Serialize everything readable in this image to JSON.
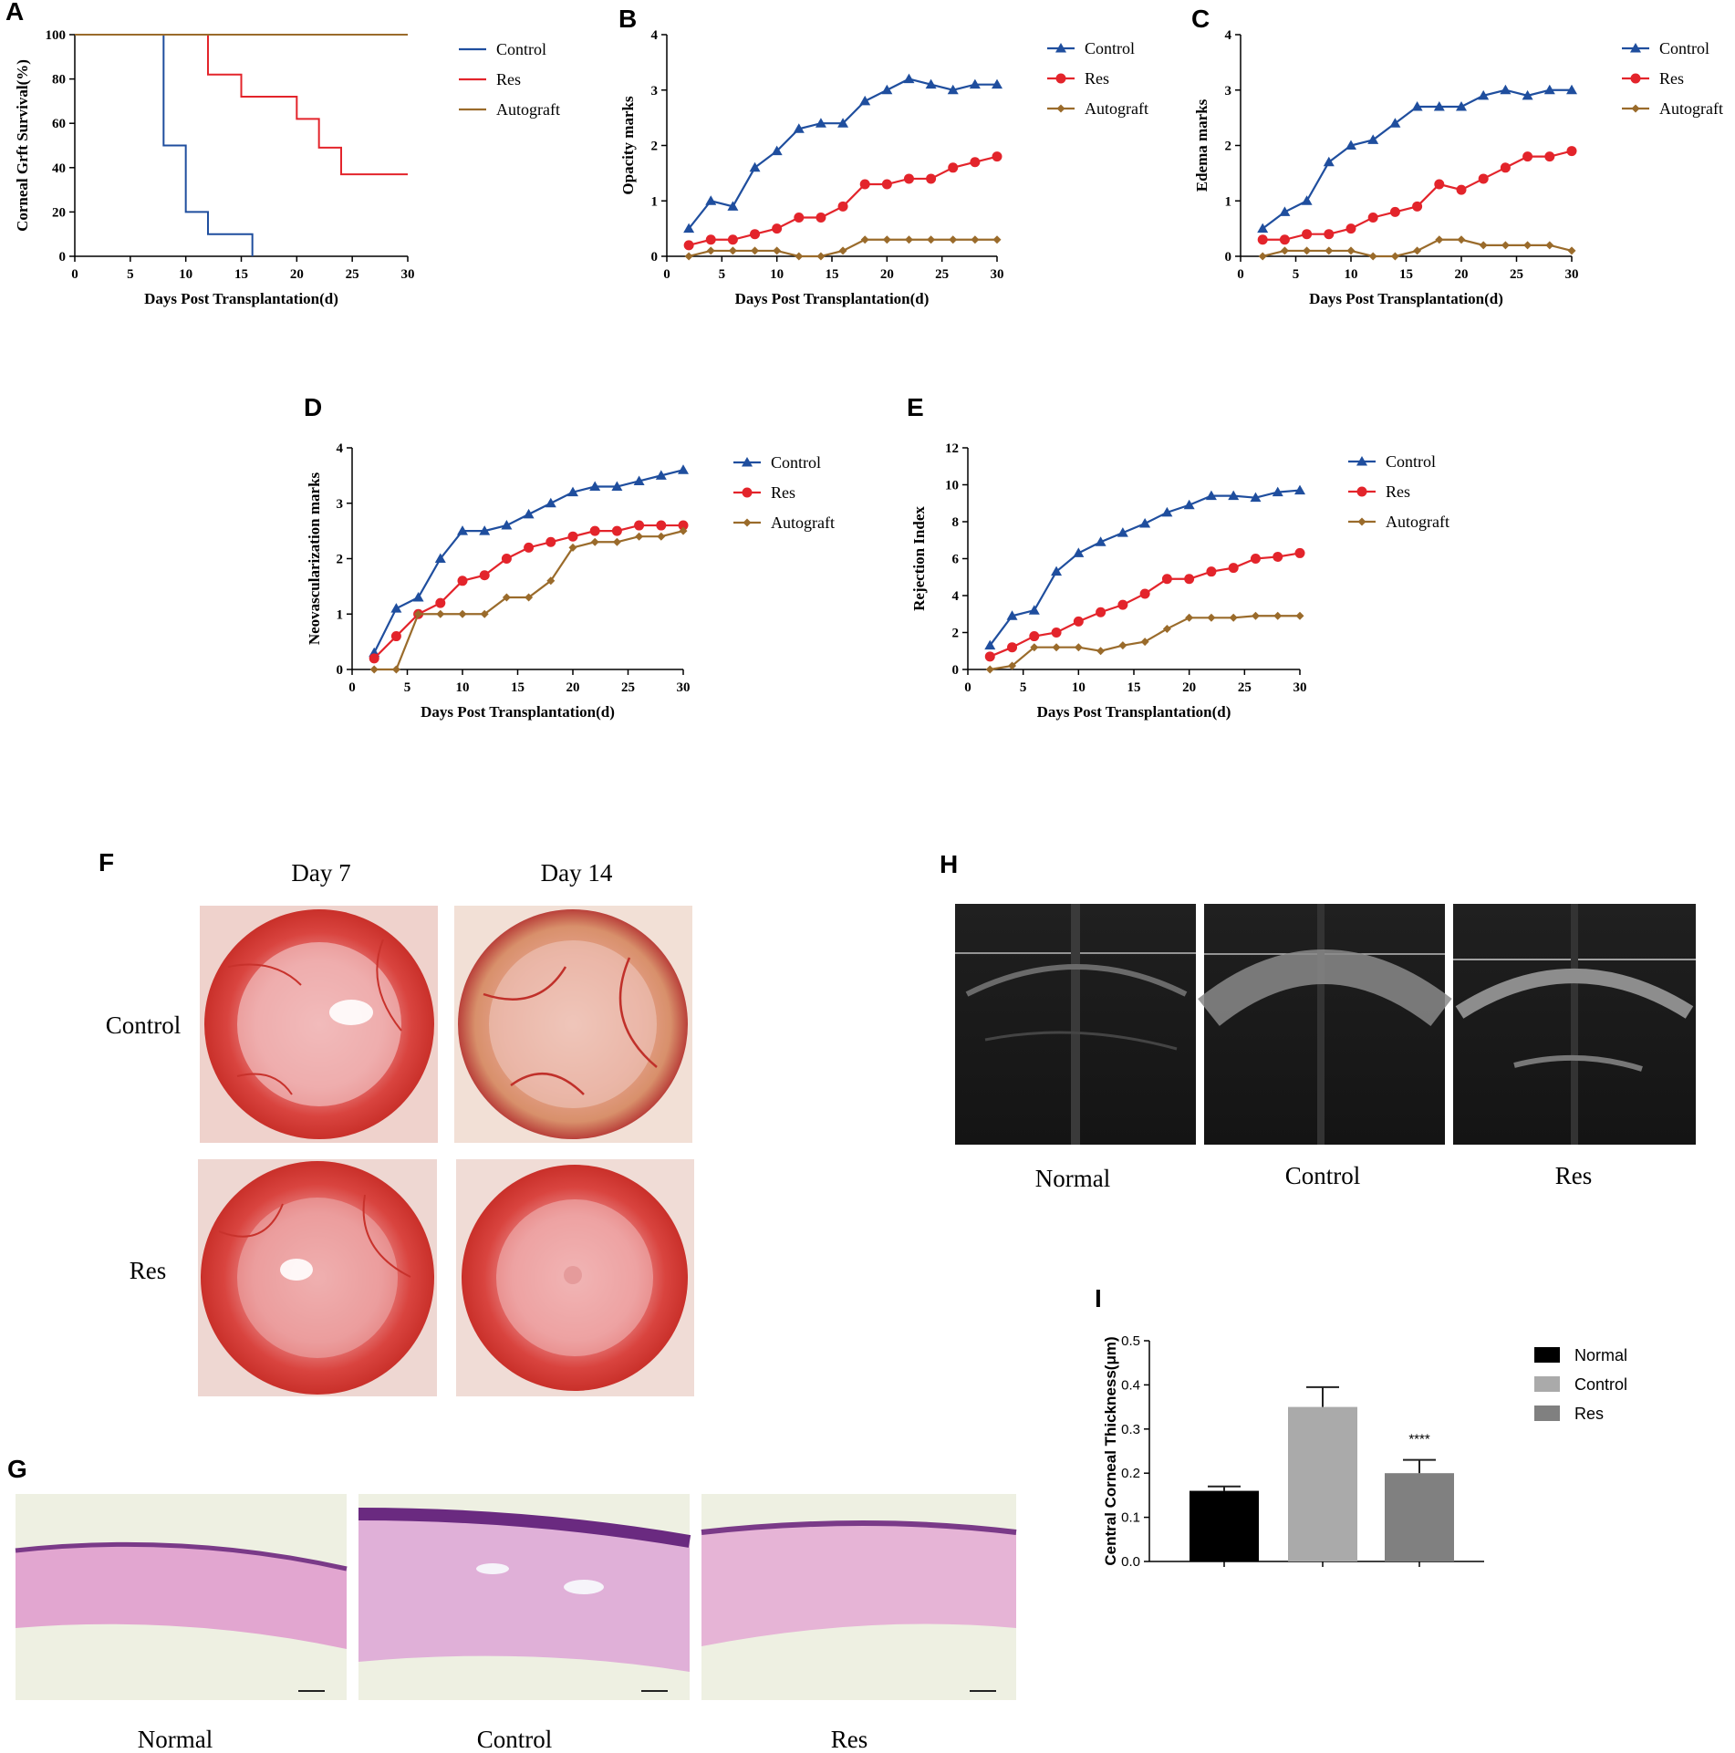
{
  "panel_letters": {
    "a": "A",
    "b": "B",
    "c": "C",
    "d": "D",
    "e": "E",
    "f": "F",
    "g": "G",
    "h": "H",
    "i": "I"
  },
  "colors": {
    "control": "#1f4e9e",
    "res": "#e3242b",
    "autograft": "#9a6b2b",
    "normal_bar": "#000000",
    "control_bar": "#aaaaaa",
    "res_bar": "#808080"
  },
  "chart_data": [
    {
      "id": "A",
      "type": "line",
      "title": "",
      "xlabel": "Days Post Transplantation(d)",
      "ylabel": "Corneal Grft Survival(%)",
      "xlim": [
        0,
        30
      ],
      "ylim": [
        0,
        100
      ],
      "xticks": [
        "0",
        "5",
        "10",
        "15",
        "20",
        "25",
        "30"
      ],
      "yticks": [
        "0",
        "20",
        "40",
        "60",
        "80",
        "100"
      ],
      "step": true,
      "legend": [
        "Control",
        "Res",
        "Autograft"
      ],
      "series": [
        {
          "name": "Control",
          "x": [
            0,
            8,
            8,
            10,
            10,
            12,
            12,
            16,
            16
          ],
          "y": [
            100,
            100,
            50,
            50,
            20,
            20,
            10,
            10,
            0
          ]
        },
        {
          "name": "Res",
          "x": [
            0,
            12,
            12,
            15,
            15,
            20,
            20,
            22,
            22,
            24,
            24,
            30
          ],
          "y": [
            100,
            100,
            82,
            82,
            72,
            72,
            62,
            62,
            49,
            49,
            37,
            37
          ]
        },
        {
          "name": "Autograft",
          "x": [
            0,
            30
          ],
          "y": [
            100,
            100
          ]
        }
      ]
    },
    {
      "id": "B",
      "type": "line",
      "xlabel": "Days Post Transplantation(d)",
      "ylabel": "Opacity marks",
      "xlim": [
        0,
        30
      ],
      "ylim": [
        0,
        4
      ],
      "xticks": [
        "0",
        "5",
        "10",
        "15",
        "20",
        "25",
        "30"
      ],
      "yticks": [
        "0",
        "1",
        "2",
        "3",
        "4"
      ],
      "legend": [
        "Control",
        "Res",
        "Autograft"
      ],
      "x": [
        2,
        4,
        6,
        8,
        10,
        12,
        14,
        16,
        18,
        20,
        22,
        24,
        26,
        28,
        30
      ],
      "series": [
        {
          "name": "Control",
          "values": [
            0.5,
            1.0,
            0.9,
            1.6,
            1.9,
            2.3,
            2.4,
            2.4,
            2.8,
            3.0,
            3.2,
            3.1,
            3.0,
            3.1,
            3.1
          ]
        },
        {
          "name": "Res",
          "values": [
            0.2,
            0.3,
            0.3,
            0.4,
            0.5,
            0.7,
            0.7,
            0.9,
            1.3,
            1.3,
            1.4,
            1.4,
            1.6,
            1.7,
            1.8
          ]
        },
        {
          "name": "Autograft",
          "values": [
            0.0,
            0.1,
            0.1,
            0.1,
            0.1,
            0.0,
            0.0,
            0.1,
            0.3,
            0.3,
            0.3,
            0.3,
            0.3,
            0.3,
            0.3
          ]
        }
      ]
    },
    {
      "id": "C",
      "type": "line",
      "xlabel": "Days Post Transplantation(d)",
      "ylabel": "Edema marks",
      "xlim": [
        0,
        30
      ],
      "ylim": [
        0,
        4
      ],
      "xticks": [
        "0",
        "5",
        "10",
        "15",
        "20",
        "25",
        "30"
      ],
      "yticks": [
        "0",
        "1",
        "2",
        "3",
        "4"
      ],
      "legend": [
        "Control",
        "Res",
        "Autograft"
      ],
      "x": [
        2,
        4,
        6,
        8,
        10,
        12,
        14,
        16,
        18,
        20,
        22,
        24,
        26,
        28,
        30
      ],
      "series": [
        {
          "name": "Control",
          "values": [
            0.5,
            0.8,
            1.0,
            1.7,
            2.0,
            2.1,
            2.4,
            2.7,
            2.7,
            2.7,
            2.9,
            3.0,
            2.9,
            3.0,
            3.0
          ]
        },
        {
          "name": "Res",
          "values": [
            0.3,
            0.3,
            0.4,
            0.4,
            0.5,
            0.7,
            0.8,
            0.9,
            1.3,
            1.2,
            1.4,
            1.6,
            1.8,
            1.8,
            1.9
          ]
        },
        {
          "name": "Autograft",
          "values": [
            0.0,
            0.1,
            0.1,
            0.1,
            0.1,
            0.0,
            0.0,
            0.1,
            0.3,
            0.3,
            0.2,
            0.2,
            0.2,
            0.2,
            0.1
          ]
        }
      ]
    },
    {
      "id": "D",
      "type": "line",
      "xlabel": "Days Post Transplantation(d)",
      "ylabel": "Neovascularization marks",
      "xlim": [
        0,
        30
      ],
      "ylim": [
        0,
        4
      ],
      "xticks": [
        "0",
        "5",
        "10",
        "15",
        "20",
        "25",
        "30"
      ],
      "yticks": [
        "0",
        "1",
        "2",
        "3",
        "4"
      ],
      "legend": [
        "Control",
        "Res",
        "Autograft"
      ],
      "x": [
        2,
        4,
        6,
        8,
        10,
        12,
        14,
        16,
        18,
        20,
        22,
        24,
        26,
        28,
        30
      ],
      "series": [
        {
          "name": "Control",
          "values": [
            0.3,
            1.1,
            1.3,
            2.0,
            2.5,
            2.5,
            2.6,
            2.8,
            3.0,
            3.2,
            3.3,
            3.3,
            3.4,
            3.5,
            3.6
          ]
        },
        {
          "name": "Res",
          "values": [
            0.2,
            0.6,
            1.0,
            1.2,
            1.6,
            1.7,
            2.0,
            2.2,
            2.3,
            2.4,
            2.5,
            2.5,
            2.6,
            2.6,
            2.6
          ]
        },
        {
          "name": "Autograft",
          "values": [
            0.0,
            0.0,
            1.0,
            1.0,
            1.0,
            1.0,
            1.3,
            1.3,
            1.6,
            2.2,
            2.3,
            2.3,
            2.4,
            2.4,
            2.5
          ]
        }
      ]
    },
    {
      "id": "E",
      "type": "line",
      "xlabel": "Days Post Transplantation(d)",
      "ylabel": "Rejection Index",
      "xlim": [
        0,
        30
      ],
      "ylim": [
        0,
        12
      ],
      "xticks": [
        "0",
        "5",
        "10",
        "15",
        "20",
        "25",
        "30"
      ],
      "yticks": [
        "0",
        "2",
        "4",
        "6",
        "8",
        "10",
        "12"
      ],
      "legend": [
        "Control",
        "Res",
        "Autograft"
      ],
      "x": [
        2,
        4,
        6,
        8,
        10,
        12,
        14,
        16,
        18,
        20,
        22,
        24,
        26,
        28,
        30
      ],
      "series": [
        {
          "name": "Control",
          "values": [
            1.3,
            2.9,
            3.2,
            5.3,
            6.3,
            6.9,
            7.4,
            7.9,
            8.5,
            8.9,
            9.4,
            9.4,
            9.3,
            9.6,
            9.7
          ]
        },
        {
          "name": "Res",
          "values": [
            0.7,
            1.2,
            1.8,
            2.0,
            2.6,
            3.1,
            3.5,
            4.1,
            4.9,
            4.9,
            5.3,
            5.5,
            6.0,
            6.1,
            6.3
          ]
        },
        {
          "name": "Autograft",
          "values": [
            0.0,
            0.2,
            1.2,
            1.2,
            1.2,
            1.0,
            1.3,
            1.5,
            2.2,
            2.8,
            2.8,
            2.8,
            2.9,
            2.9,
            2.9
          ]
        }
      ]
    },
    {
      "id": "I",
      "type": "bar",
      "xlabel": "",
      "ylabel": "Central Corneal Thickness(μm)",
      "ylim": [
        0,
        0.5
      ],
      "yticks": [
        "0.0",
        "0.1",
        "0.2",
        "0.3",
        "0.4",
        "0.5"
      ],
      "categories": [
        "Normal",
        "Control",
        "Res"
      ],
      "values": [
        0.16,
        0.35,
        0.2
      ],
      "errors": [
        0.01,
        0.045,
        0.03
      ],
      "annotations": [
        {
          "category": "Res",
          "text": "****"
        }
      ],
      "legend": [
        "Normal",
        "Control",
        "Res"
      ]
    }
  ],
  "panel_f": {
    "col_labels": [
      "Day 7",
      "Day 14"
    ],
    "row_labels": [
      "Control",
      "Res"
    ]
  },
  "panel_h": {
    "labels": [
      "Normal",
      "Control",
      "Res"
    ]
  },
  "panel_g": {
    "labels": [
      "Normal",
      "Control",
      "Res"
    ]
  }
}
